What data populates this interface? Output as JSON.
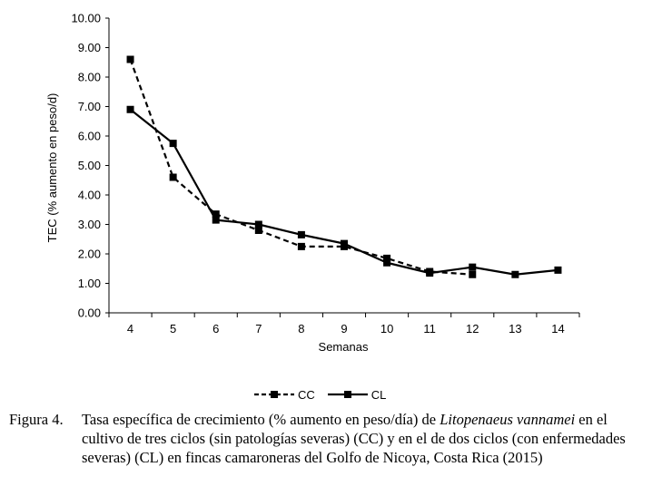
{
  "chart_data": {
    "type": "line",
    "title": "",
    "xlabel": "Semanas",
    "ylabel": "TEC (% aumento en peso/d)",
    "x": [
      4,
      5,
      6,
      7,
      8,
      9,
      10,
      11,
      12,
      13,
      14
    ],
    "ylim": [
      0,
      10
    ],
    "yticks": [
      "0.00",
      "1.00",
      "2.00",
      "3.00",
      "4.00",
      "5.00",
      "6.00",
      "7.00",
      "8.00",
      "9.00",
      "10.00"
    ],
    "grid": false,
    "legend_position": "bottom",
    "series": [
      {
        "name": "CC",
        "style": "dashed",
        "marker": "square",
        "color": "#000000",
        "values": [
          8.6,
          4.6,
          3.35,
          2.8,
          2.25,
          2.25,
          1.85,
          1.4,
          1.3,
          null,
          null
        ]
      },
      {
        "name": "CL",
        "style": "solid",
        "marker": "square",
        "color": "#000000",
        "values": [
          6.9,
          5.75,
          3.15,
          3.0,
          2.65,
          2.35,
          1.7,
          1.35,
          1.55,
          1.3,
          1.45
        ]
      }
    ]
  },
  "caption": {
    "label": "Figura 4.",
    "text_before": "Tasa específica de crecimiento (% aumento en peso/día) de ",
    "species": "Litopenaeus vannamei",
    "text_after": " en el cultivo de tres ciclos (sin patologías severas) (CC) y en el de dos ciclos (con enfermedades severas) (CL) en fincas camaroneras del Golfo de Nicoya, Costa Rica (2015)"
  }
}
